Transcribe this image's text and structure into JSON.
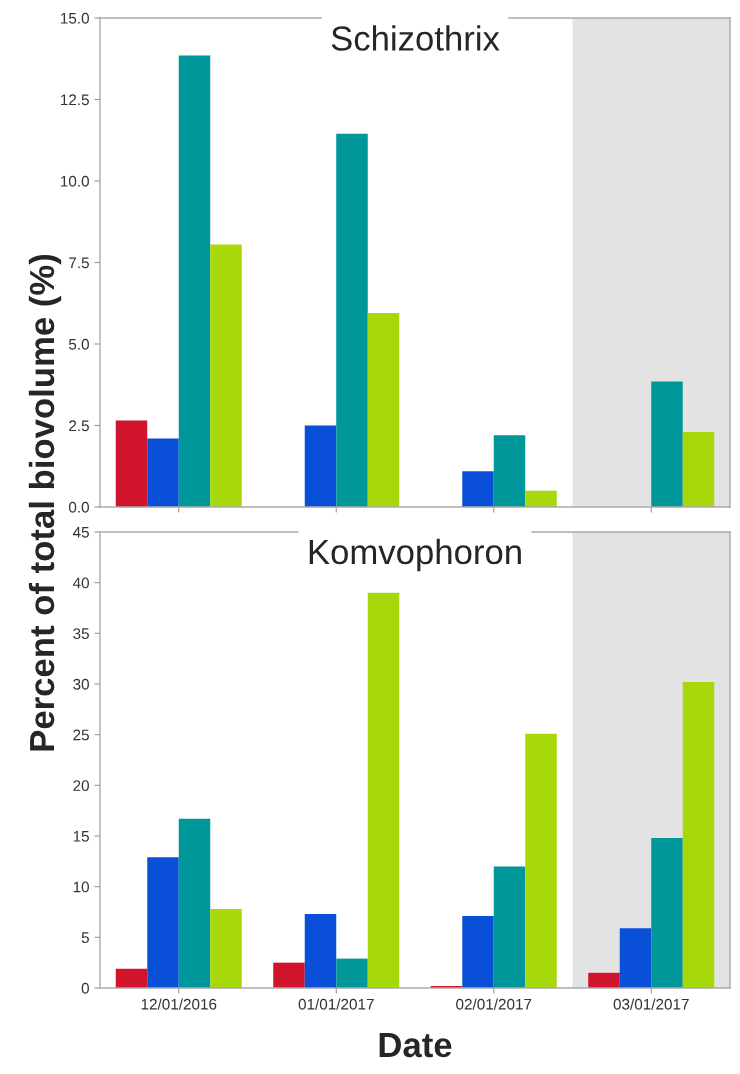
{
  "chart_data": [
    {
      "type": "bar",
      "title": "Schizothrix",
      "ylabel": "Percent of total biovolume (%)",
      "categories": [
        "12/01/2016",
        "01/01/2017",
        "02/01/2017",
        "03/01/2017"
      ],
      "series": [
        {
          "color": "#d0142c",
          "values": [
            2.65,
            0,
            0,
            0
          ]
        },
        {
          "color": "#0a4fd8",
          "values": [
            2.1,
            2.5,
            1.1,
            0
          ]
        },
        {
          "color": "#00979a",
          "values": [
            13.85,
            11.45,
            2.2,
            3.85
          ]
        },
        {
          "color": "#a6d80a",
          "values": [
            8.05,
            5.95,
            0.5,
            2.3
          ]
        }
      ],
      "ylim": [
        0,
        15
      ],
      "yticks": [
        {
          "value": 0,
          "label": "0.0"
        },
        2.5,
        {
          "value": 5,
          "label": "5.0"
        },
        7.5,
        {
          "value": 10,
          "label": "10.0"
        },
        12.5,
        {
          "value": 15,
          "label": "15.0"
        }
      ],
      "bands": [
        {
          "axis": "x",
          "from": "03/01/2017",
          "to": "03/01/2017",
          "color": "#e3e3e3"
        }
      ],
      "tick_labels": "y",
      "grid": false,
      "legend": false
    },
    {
      "type": "bar",
      "title": "Komvophoron",
      "xlabel": "Date",
      "categories": [
        "12/01/2016",
        "01/01/2017",
        "02/01/2017",
        "03/01/2017"
      ],
      "series": [
        {
          "color": "#d0142c",
          "values": [
            1.9,
            2.5,
            0.2,
            1.5
          ]
        },
        {
          "color": "#0a4fd8",
          "values": [
            12.9,
            7.3,
            7.1,
            5.9
          ]
        },
        {
          "color": "#00979a",
          "values": [
            16.7,
            2.9,
            12.0,
            14.8
          ]
        },
        {
          "color": "#a6d80a",
          "values": [
            7.8,
            39.0,
            25.1,
            30.2
          ]
        }
      ],
      "ylim": [
        0,
        45
      ],
      "yticks": [
        0,
        5,
        10,
        15,
        20,
        25,
        30,
        35,
        40,
        45
      ],
      "bands": [
        {
          "axis": "x",
          "from": "03/01/2017",
          "to": "03/01/2017",
          "color": "#e3e3e3"
        }
      ],
      "grid": false,
      "legend": false
    }
  ]
}
